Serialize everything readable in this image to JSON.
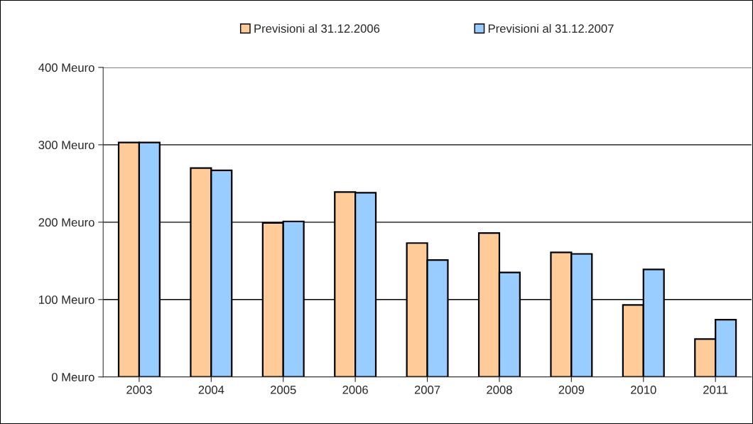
{
  "chart_data": {
    "type": "bar",
    "categories": [
      "2003",
      "2004",
      "2005",
      "2006",
      "2007",
      "2008",
      "2009",
      "2010",
      "2011"
    ],
    "series": [
      {
        "name": "Previsioni al 31.12.2006",
        "color": "#ffcc99",
        "values": [
          303,
          270,
          199,
          239,
          173,
          186,
          161,
          93,
          49
        ]
      },
      {
        "name": "Previsioni al 31.12.2007",
        "color": "#99ccff",
        "values": [
          303,
          267,
          201,
          238,
          151,
          135,
          159,
          139,
          74
        ]
      }
    ],
    "ylim": [
      0,
      400
    ],
    "yticks": [
      {
        "value": 0,
        "label": "0 Meuro"
      },
      {
        "value": 100,
        "label": "100 Meuro"
      },
      {
        "value": 200,
        "label": "200 Meuro"
      },
      {
        "value": 300,
        "label": "300 Meuro"
      },
      {
        "value": 400,
        "label": "400 Meuro"
      }
    ],
    "grid": "y",
    "legend": "top"
  }
}
